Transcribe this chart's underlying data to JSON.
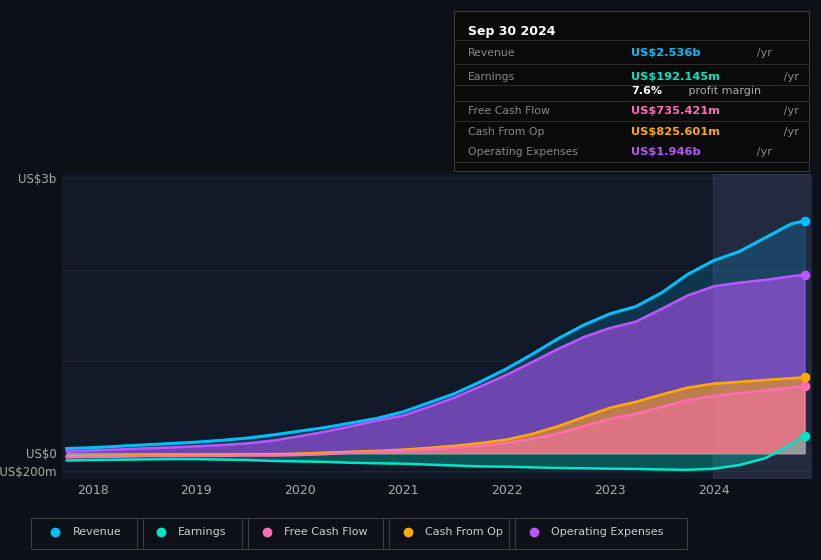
{
  "background_color": "#0d1117",
  "plot_bg_color": "#111827",
  "grid_color": "#252a35",
  "text_color": "#aaaaaa",
  "years": [
    2017.75,
    2018.0,
    2018.25,
    2018.5,
    2018.75,
    2019.0,
    2019.25,
    2019.5,
    2019.75,
    2020.0,
    2020.25,
    2020.5,
    2020.75,
    2021.0,
    2021.25,
    2021.5,
    2021.75,
    2022.0,
    2022.25,
    2022.5,
    2022.75,
    2023.0,
    2023.25,
    2023.5,
    2023.75,
    2024.0,
    2024.25,
    2024.5,
    2024.75,
    2024.88
  ],
  "revenue": [
    0.05,
    0.06,
    0.075,
    0.09,
    0.105,
    0.12,
    0.14,
    0.165,
    0.2,
    0.24,
    0.28,
    0.33,
    0.38,
    0.45,
    0.55,
    0.65,
    0.78,
    0.92,
    1.08,
    1.25,
    1.4,
    1.52,
    1.6,
    1.75,
    1.95,
    2.1,
    2.2,
    2.35,
    2.5,
    2.536
  ],
  "earnings": [
    -0.08,
    -0.075,
    -0.072,
    -0.068,
    -0.065,
    -0.065,
    -0.07,
    -0.075,
    -0.085,
    -0.09,
    -0.095,
    -0.105,
    -0.11,
    -0.115,
    -0.125,
    -0.135,
    -0.145,
    -0.148,
    -0.155,
    -0.162,
    -0.165,
    -0.17,
    -0.172,
    -0.178,
    -0.182,
    -0.17,
    -0.13,
    -0.055,
    0.095,
    0.192
  ],
  "free_cash_flow": [
    -0.045,
    -0.04,
    -0.038,
    -0.03,
    -0.03,
    -0.028,
    -0.028,
    -0.025,
    -0.025,
    -0.02,
    -0.01,
    0.005,
    0.015,
    0.025,
    0.04,
    0.058,
    0.08,
    0.11,
    0.155,
    0.215,
    0.295,
    0.375,
    0.43,
    0.505,
    0.58,
    0.625,
    0.655,
    0.685,
    0.715,
    0.735
  ],
  "cash_from_op": [
    -0.035,
    -0.03,
    -0.028,
    -0.022,
    -0.02,
    -0.018,
    -0.018,
    -0.015,
    -0.012,
    -0.005,
    0.005,
    0.015,
    0.025,
    0.038,
    0.058,
    0.08,
    0.11,
    0.148,
    0.21,
    0.295,
    0.395,
    0.495,
    0.56,
    0.64,
    0.715,
    0.758,
    0.778,
    0.798,
    0.818,
    0.826
  ],
  "op_expenses": [
    0.02,
    0.03,
    0.04,
    0.052,
    0.062,
    0.075,
    0.088,
    0.108,
    0.138,
    0.185,
    0.235,
    0.295,
    0.355,
    0.41,
    0.505,
    0.608,
    0.73,
    0.855,
    0.995,
    1.138,
    1.268,
    1.365,
    1.435,
    1.575,
    1.72,
    1.82,
    1.86,
    1.89,
    1.93,
    1.946
  ],
  "revenue_color": "#00bfff",
  "earnings_color": "#00e5c8",
  "free_cash_flow_color": "#ff6eb4",
  "cash_from_op_color": "#ffaa00",
  "op_expenses_color": "#bb55ff",
  "ylim_min": -0.28,
  "ylim_max": 3.05,
  "xtick_years": [
    2018,
    2019,
    2020,
    2021,
    2022,
    2023,
    2024
  ],
  "infobox_date": "Sep 30 2024",
  "infobox_rows": [
    {
      "label": "Revenue",
      "value": "US$2.536b",
      "suffix": " /yr",
      "color": "#00bfff",
      "extra": null
    },
    {
      "label": "Earnings",
      "value": "US$192.145m",
      "suffix": " /yr",
      "color": "#00e5c8",
      "extra": "7.6% profit margin"
    },
    {
      "label": "Free Cash Flow",
      "value": "US$735.421m",
      "suffix": " /yr",
      "color": "#ff6eb4",
      "extra": null
    },
    {
      "label": "Cash From Op",
      "value": "US$825.601m",
      "suffix": " /yr",
      "color": "#ffaa00",
      "extra": null
    },
    {
      "label": "Operating Expenses",
      "value": "US$1.946b",
      "suffix": " /yr",
      "color": "#bb55ff",
      "extra": null
    }
  ],
  "legend_items": [
    "Revenue",
    "Earnings",
    "Free Cash Flow",
    "Cash From Op",
    "Operating Expenses"
  ],
  "legend_colors": [
    "#00bfff",
    "#00e5c8",
    "#ff6eb4",
    "#ffaa00",
    "#bb55ff"
  ]
}
